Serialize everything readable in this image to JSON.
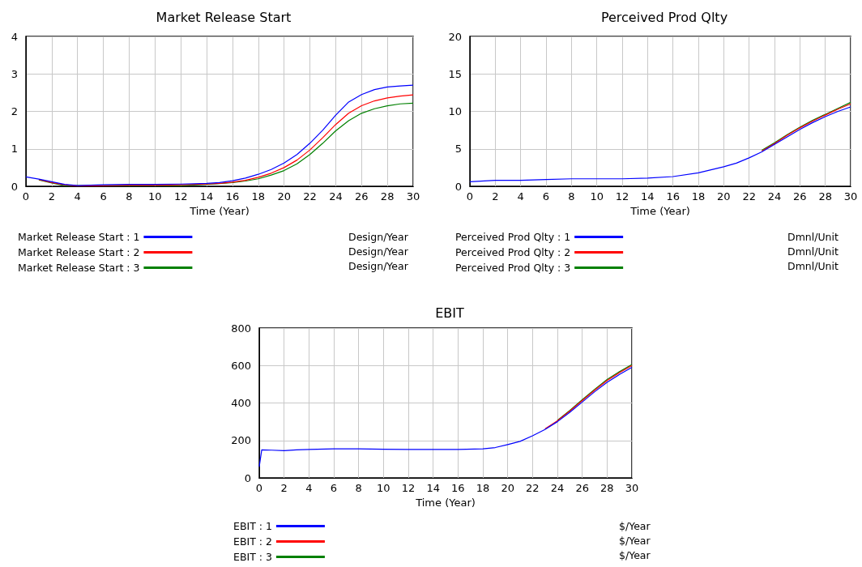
{
  "chart_data": [
    {
      "type": "line",
      "title": "Market Release Start",
      "xlabel": "Time (Year)",
      "x": [
        0,
        1,
        2,
        3,
        4,
        6,
        8,
        10,
        12,
        14,
        15,
        16,
        17,
        18,
        19,
        20,
        21,
        22,
        23,
        24,
        25,
        26,
        27,
        28,
        29,
        30
      ],
      "xlim": [
        0,
        30
      ],
      "xticks": [
        0,
        2,
        4,
        6,
        8,
        10,
        12,
        14,
        16,
        18,
        20,
        22,
        24,
        26,
        28,
        30
      ],
      "ylim": [
        0,
        4
      ],
      "yticks": [
        0,
        1,
        2,
        3,
        4
      ],
      "grid": true,
      "legend": "bottom",
      "annotations": [
        "Design/Year",
        "Design/Year",
        "Design/Year"
      ],
      "series": [
        {
          "name": "Market Release Start : 1",
          "color": "#0000ff",
          "values": [
            0.25,
            0.19,
            0.12,
            0.05,
            0.02,
            0.04,
            0.05,
            0.05,
            0.06,
            0.08,
            0.1,
            0.15,
            0.22,
            0.32,
            0.45,
            0.62,
            0.85,
            1.15,
            1.5,
            1.9,
            2.25,
            2.45,
            2.58,
            2.65,
            2.68,
            2.7
          ]
        },
        {
          "name": "Market Release Start : 2",
          "color": "#ff0000",
          "x": [
            1,
            2,
            3,
            4,
            6,
            8,
            10,
            12,
            14,
            15,
            16,
            17,
            18,
            19,
            20,
            21,
            22,
            23,
            24,
            25,
            26,
            27,
            28,
            29,
            30
          ],
          "values": [
            0.18,
            0.1,
            0.04,
            0.01,
            0.02,
            0.03,
            0.03,
            0.04,
            0.06,
            0.08,
            0.11,
            0.16,
            0.24,
            0.35,
            0.5,
            0.7,
            0.97,
            1.3,
            1.65,
            1.95,
            2.15,
            2.28,
            2.36,
            2.41,
            2.44
          ]
        },
        {
          "name": "Market Release Start : 3",
          "color": "#008000",
          "x": [
            1,
            2,
            3,
            8,
            10,
            12,
            14,
            15,
            16,
            17,
            18,
            19,
            20,
            21,
            22,
            23,
            24,
            25,
            26,
            27,
            28,
            29,
            30
          ],
          "values": [
            0.17,
            0.09,
            0.02,
            0.02,
            0.03,
            0.02,
            0.05,
            0.07,
            0.1,
            0.14,
            0.2,
            0.3,
            0.42,
            0.6,
            0.85,
            1.15,
            1.48,
            1.75,
            1.95,
            2.07,
            2.15,
            2.2,
            2.22
          ]
        }
      ]
    },
    {
      "type": "line",
      "title": "Perceived Prod Qlty",
      "xlabel": "Time (Year)",
      "x": [
        0,
        2,
        4,
        6,
        8,
        10,
        12,
        14,
        16,
        18,
        20,
        21,
        22,
        23,
        24,
        25,
        26,
        27,
        28,
        29,
        30
      ],
      "xlim": [
        0,
        30
      ],
      "xticks": [
        0,
        2,
        4,
        6,
        8,
        10,
        12,
        14,
        16,
        18,
        20,
        22,
        24,
        26,
        28,
        30
      ],
      "ylim": [
        0,
        20
      ],
      "yticks": [
        0,
        5,
        10,
        15,
        20
      ],
      "grid": true,
      "legend": "bottom",
      "annotations": [
        "Dmnl/Unit",
        "Dmnl/Unit",
        "Dmnl/Unit"
      ],
      "series": [
        {
          "name": "Perceived Prod Qlty : 1",
          "color": "#0000ff",
          "values": [
            0.6,
            0.8,
            0.8,
            0.9,
            1,
            1,
            1,
            1.1,
            1.3,
            1.8,
            2.6,
            3.1,
            3.8,
            4.6,
            5.6,
            6.6,
            7.6,
            8.5,
            9.3,
            10,
            10.6
          ]
        },
        {
          "name": "Perceived Prod Qlty : 2",
          "color": "#ff0000",
          "x": [
            23,
            24,
            25,
            26,
            27,
            28,
            29,
            30
          ],
          "values": [
            4.7,
            5.7,
            6.8,
            7.8,
            8.7,
            9.5,
            10.3,
            11
          ]
        },
        {
          "name": "Perceived Prod Qlty : 3",
          "color": "#008000",
          "x": [
            23,
            24,
            25,
            26,
            27,
            28,
            29,
            30
          ],
          "values": [
            4.8,
            5.8,
            6.9,
            7.9,
            8.8,
            9.6,
            10.4,
            11.2
          ]
        }
      ]
    },
    {
      "type": "line",
      "title": "EBIT",
      "xlabel": "Time (Year)",
      "x": [
        0,
        0.2,
        1,
        2,
        3,
        4,
        6,
        8,
        10,
        12,
        14,
        16,
        18,
        19,
        20,
        21,
        22,
        23,
        24,
        25,
        26,
        27,
        28,
        29,
        30
      ],
      "xlim": [
        0,
        30
      ],
      "xticks": [
        0,
        2,
        4,
        6,
        8,
        10,
        12,
        14,
        16,
        18,
        20,
        22,
        24,
        26,
        28,
        30
      ],
      "ylim": [
        0,
        800
      ],
      "yticks": [
        0,
        200,
        400,
        600,
        800
      ],
      "grid": true,
      "legend": "bottom",
      "annotations": [
        "$/Year",
        "$/Year",
        "$/Year"
      ],
      "series": [
        {
          "name": "EBIT : 1",
          "color": "#0000ff",
          "values": [
            60,
            150,
            148,
            145,
            150,
            152,
            155,
            155,
            153,
            152,
            152,
            152,
            155,
            162,
            178,
            195,
            225,
            258,
            300,
            350,
            405,
            460,
            510,
            552,
            590
          ]
        },
        {
          "name": "EBIT : 2",
          "color": "#ff0000",
          "x": [
            23,
            24,
            25,
            26,
            27,
            28,
            29,
            30
          ],
          "values": [
            262,
            305,
            357,
            413,
            468,
            520,
            562,
            600
          ]
        },
        {
          "name": "EBIT : 3",
          "color": "#008000",
          "x": [
            24,
            25,
            26,
            27,
            28,
            29,
            30
          ],
          "values": [
            307,
            360,
            417,
            473,
            525,
            567,
            605
          ]
        }
      ]
    }
  ]
}
